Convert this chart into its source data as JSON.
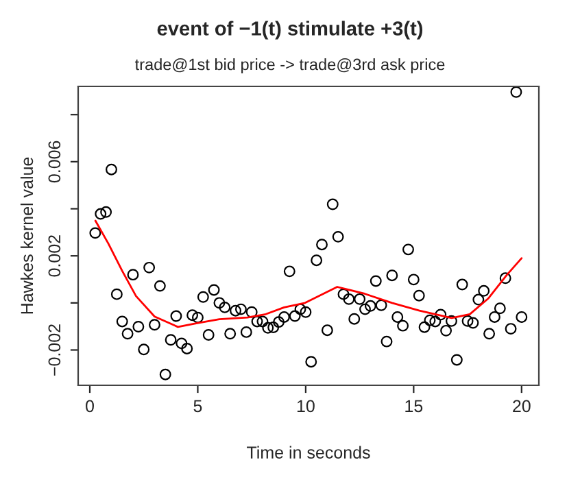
{
  "chart_data": {
    "type": "scatter",
    "title": "event of −1(t) stimulate +3(t)",
    "subtitle": "trade@1st bid price -> trade@3rd ask price",
    "xlabel": "Time in seconds",
    "ylabel": "Hawkes kernel value",
    "xlim": [
      -0.54,
      20.8
    ],
    "ylim": [
      -0.0035,
      0.0092
    ],
    "xticks": [
      0,
      5,
      10,
      15,
      20
    ],
    "yticks": [
      {
        "value": -0.002,
        "label": "−0.002"
      },
      {
        "value": 0,
        "label": null
      },
      {
        "value": 0.002,
        "label": "0.002"
      },
      {
        "value": 0.004,
        "label": null
      },
      {
        "value": 0.006,
        "label": "0.006"
      },
      {
        "value": 0.008,
        "label": null
      }
    ],
    "grid": false,
    "legend": false,
    "marker": "circle",
    "series": [
      {
        "color": "#000000",
        "x": [
          0.25,
          0.5,
          0.75,
          1.0,
          1.25,
          1.5,
          1.75,
          2.0,
          2.25,
          2.5,
          2.75,
          3.0,
          3.25,
          3.5,
          3.75,
          4.0,
          4.25,
          4.5,
          4.75,
          5.0,
          5.25,
          5.5,
          5.75,
          6.0,
          6.25,
          6.5,
          6.75,
          7.0,
          7.25,
          7.5,
          7.75,
          8.0,
          8.25,
          8.5,
          8.75,
          9.0,
          9.25,
          9.5,
          9.75,
          10.0,
          10.25,
          10.5,
          10.75,
          11.0,
          11.25,
          11.5,
          11.75,
          12.0,
          12.25,
          12.5,
          12.75,
          13.0,
          13.25,
          13.5,
          13.75,
          14.0,
          14.25,
          14.5,
          14.75,
          15.0,
          15.25,
          15.5,
          15.75,
          16.0,
          16.25,
          16.5,
          16.75,
          17.0,
          17.25,
          17.5,
          17.75,
          18.0,
          18.25,
          18.5,
          18.75,
          19.0,
          19.25,
          19.5,
          19.75,
          20.0
        ],
        "values": [
          0.00297,
          0.00378,
          0.00386,
          0.00567,
          0.00037,
          -0.00079,
          -0.00131,
          0.0012,
          -0.00101,
          -0.00198,
          0.0015,
          -0.00093,
          0.00072,
          -0.00304,
          -0.00157,
          -0.00056,
          -0.00172,
          -0.00194,
          -0.00052,
          -0.00062,
          0.00025,
          -0.00136,
          0.00055,
          0.0,
          -0.00019,
          -0.00131,
          -0.00033,
          -0.00027,
          -0.00124,
          -0.00039,
          -0.00079,
          -0.00079,
          -0.00106,
          -0.00104,
          -0.00081,
          -0.0006,
          0.00134,
          -0.00056,
          -0.00027,
          -0.00039,
          -0.0025,
          0.00181,
          0.00248,
          -0.00116,
          0.00419,
          0.00281,
          0.00037,
          0.00016,
          -0.00068,
          0.00016,
          -0.00027,
          -0.00013,
          0.00093,
          -0.0001,
          -0.00164,
          0.00117,
          -0.0006,
          -0.00097,
          0.00227,
          0.00099,
          0.00031,
          -0.00103,
          -0.00074,
          -0.00079,
          -0.0005,
          -0.00118,
          -0.00077,
          -0.00242,
          0.00078,
          -0.00077,
          -0.00085,
          0.00014,
          0.00051,
          -0.00131,
          -0.0006,
          -0.00023,
          0.00105,
          -0.0011,
          0.00896,
          -0.0006
        ]
      },
      {
        "type": "line",
        "color": "#ff0000",
        "marker": "none",
        "line_style": "solid",
        "x": [
          0.26,
          0.86,
          1.5,
          2.14,
          3.0,
          4.08,
          4.93,
          6.0,
          7.3,
          8.15,
          9.0,
          9.97,
          11.46,
          12.73,
          14.0,
          15.27,
          16.76,
          17.6,
          18.47,
          19.3,
          20.0
        ],
        "values": [
          0.00349,
          0.00252,
          0.00136,
          0.00029,
          -0.00058,
          -0.00102,
          -0.00087,
          -0.00069,
          -0.00062,
          -0.00048,
          -0.00019,
          0.0,
          0.00068,
          0.00039,
          0.0,
          -0.00033,
          -0.00064,
          -0.00048,
          0.0002,
          0.00117,
          0.0019
        ]
      }
    ]
  }
}
